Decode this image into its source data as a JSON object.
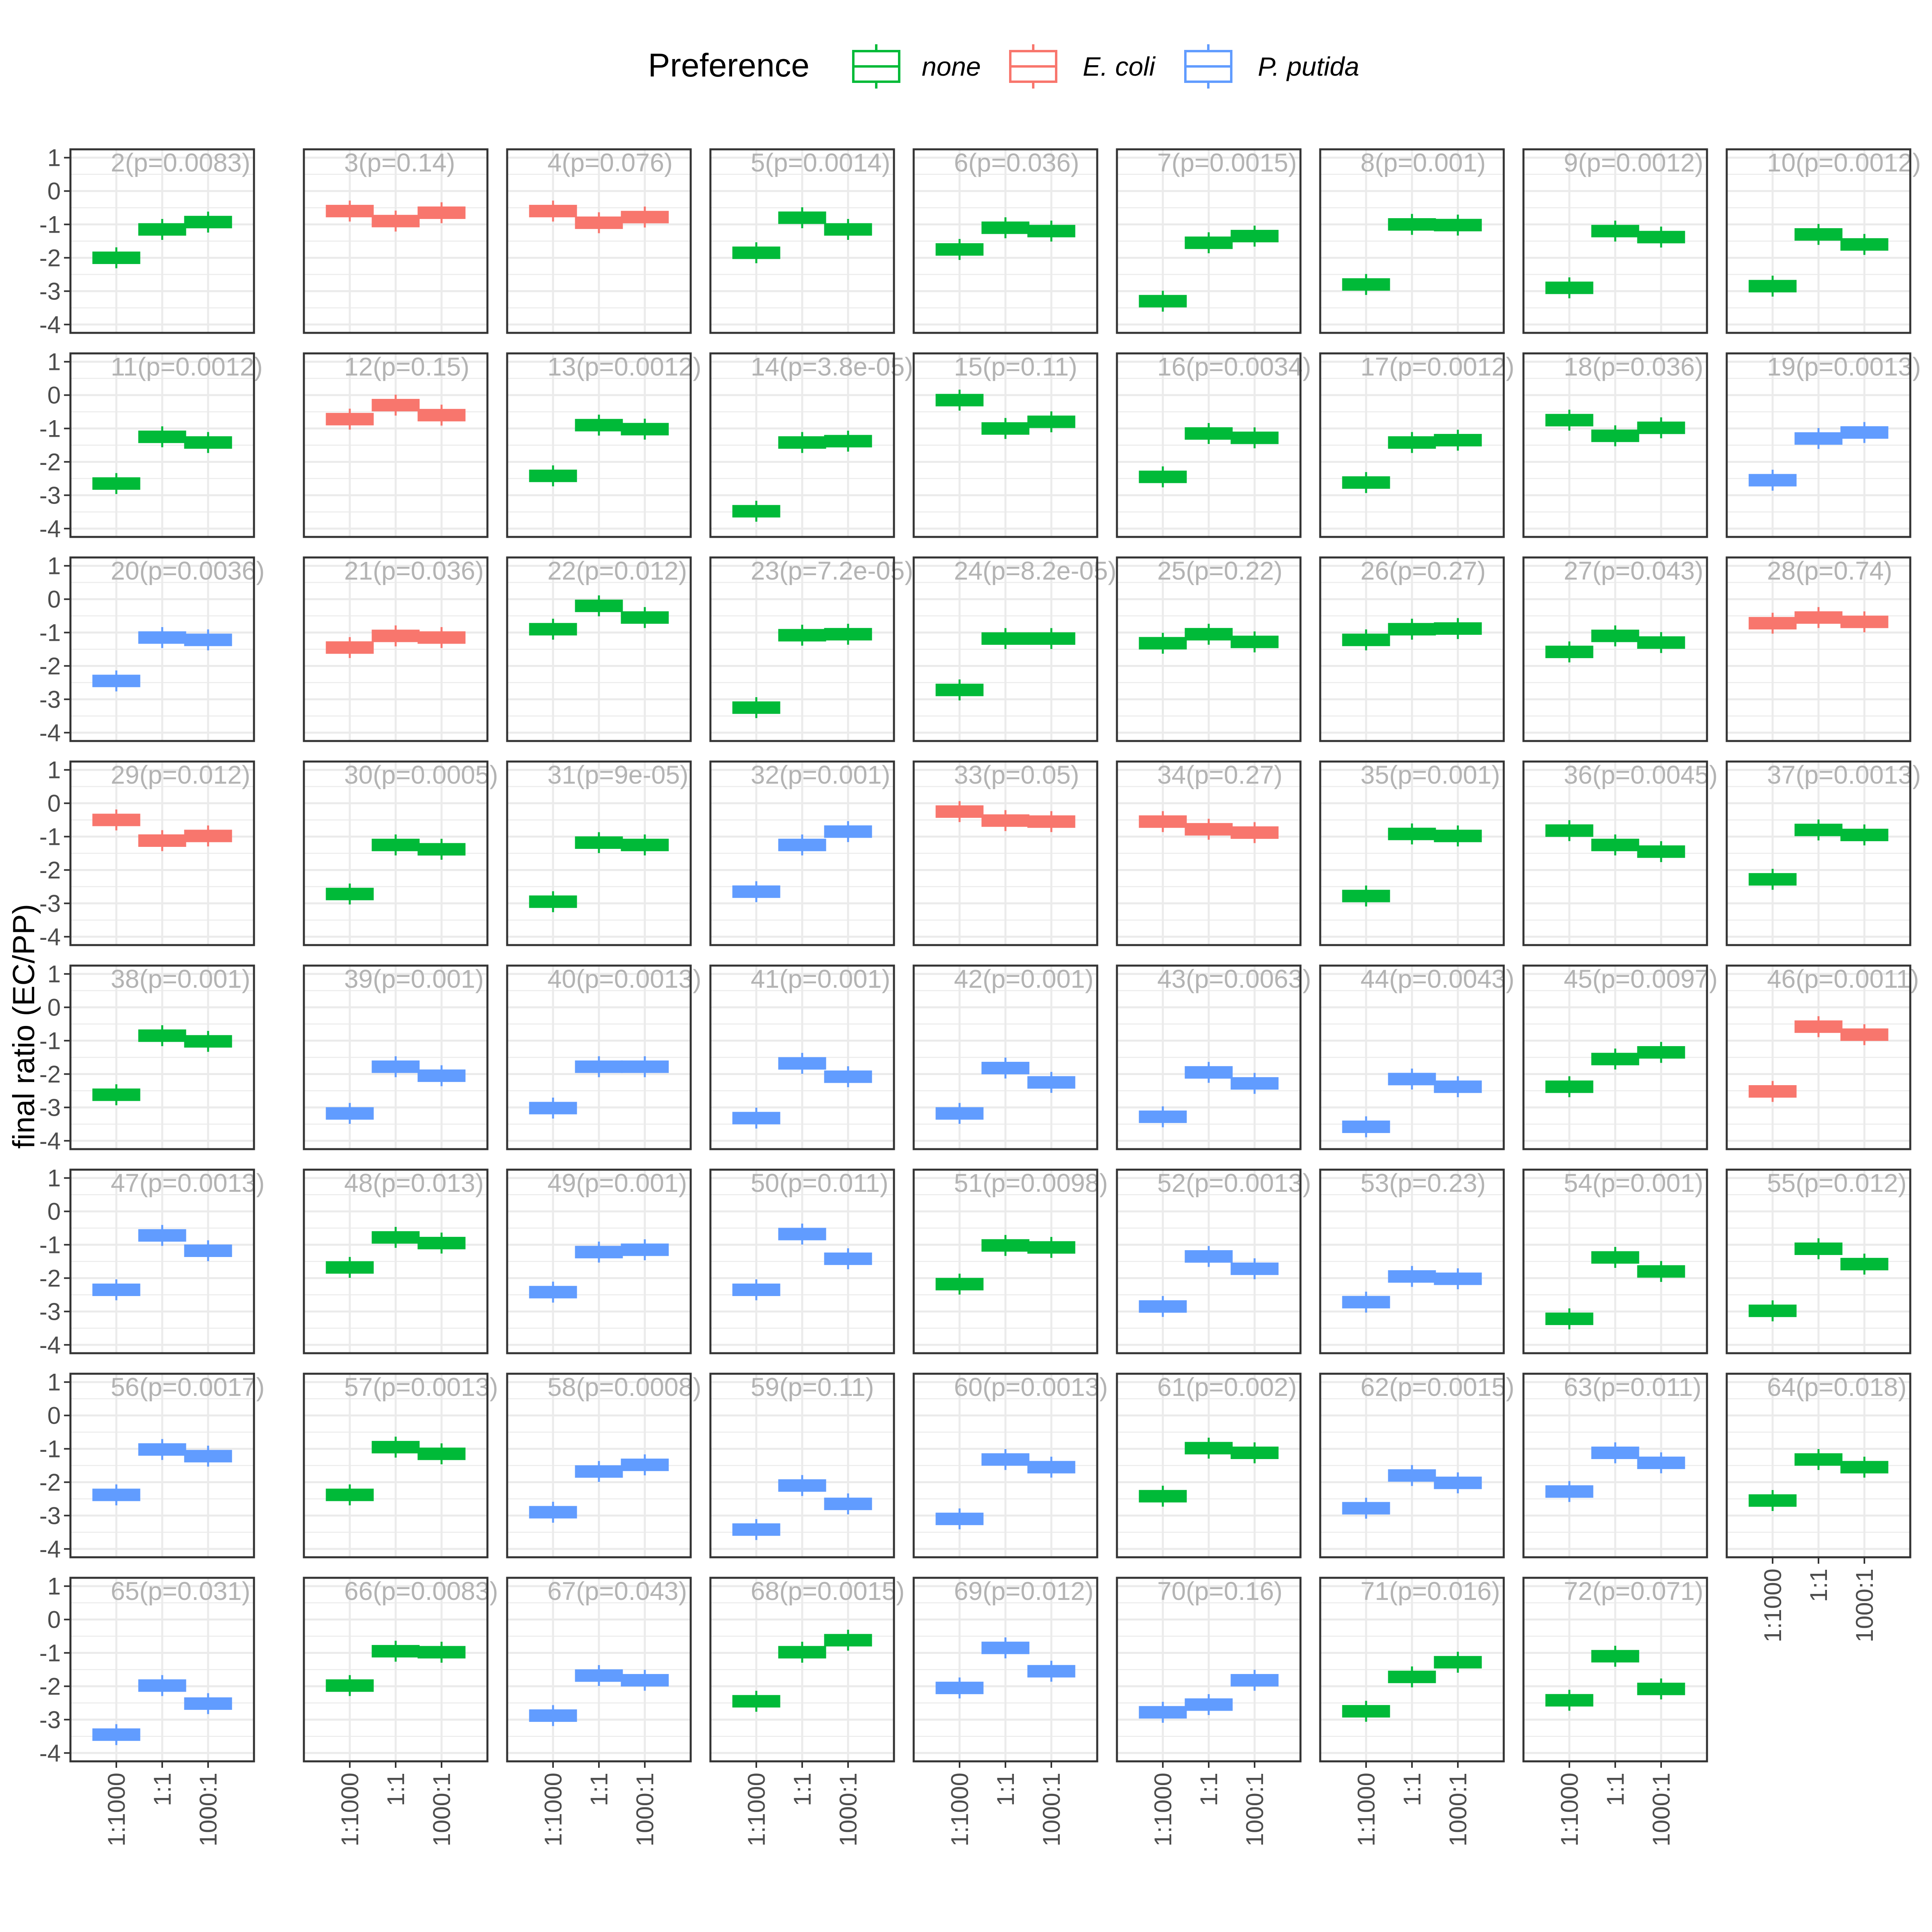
{
  "chart_data": {
    "type": "boxplot-facets",
    "ylabel": "final ratio (EC/PP)",
    "legend": {
      "title": "Preference",
      "position": "top",
      "entries": [
        {
          "key": "none",
          "label": "none",
          "color": "#00BA38"
        },
        {
          "key": "ecoli",
          "label": "E. coli",
          "color": "#F8766D"
        },
        {
          "key": "pputida",
          "label": "P. putida",
          "color": "#619CFF"
        }
      ]
    },
    "categories": [
      "1:1000",
      "1:1",
      "1000:1"
    ],
    "ylim": [
      -4.25,
      1.25
    ],
    "yticks": [
      "1",
      "0",
      "-1",
      "-2",
      "-3",
      "-4"
    ],
    "grid": true,
    "columns": 9,
    "panels": [
      {
        "title": "2(p=0.0083)",
        "pref": "none",
        "values": [
          -2.0,
          -1.15,
          -0.93
        ]
      },
      {
        "title": "3(p=0.14)",
        "pref": "ecoli",
        "values": [
          -0.6,
          -0.9,
          -0.65
        ]
      },
      {
        "title": "4(p=0.076)",
        "pref": "ecoli",
        "values": [
          -0.6,
          -0.95,
          -0.78
        ]
      },
      {
        "title": "5(p=0.0014)",
        "pref": "none",
        "values": [
          -1.85,
          -0.8,
          -1.15
        ]
      },
      {
        "title": "6(p=0.036)",
        "pref": "none",
        "values": [
          -1.75,
          -1.1,
          -1.2
        ]
      },
      {
        "title": "7(p=0.0015)",
        "pref": "none",
        "values": [
          -3.3,
          -1.55,
          -1.35
        ]
      },
      {
        "title": "8(p=0.001)",
        "pref": "none",
        "values": [
          -2.8,
          -1.0,
          -1.02
        ]
      },
      {
        "title": "9(p=0.0012)",
        "pref": "none",
        "values": [
          -2.9,
          -1.2,
          -1.38
        ]
      },
      {
        "title": "10(p=0.0012)",
        "pref": "none",
        "values": [
          -2.85,
          -1.3,
          -1.6
        ]
      },
      {
        "title": "11(p=0.0012)",
        "pref": "none",
        "values": [
          -2.65,
          -1.25,
          -1.42
        ]
      },
      {
        "title": "12(p=0.15)",
        "pref": "ecoli",
        "values": [
          -0.72,
          -0.3,
          -0.6
        ]
      },
      {
        "title": "13(p=0.0012)",
        "pref": "none",
        "values": [
          -2.42,
          -0.9,
          -1.02
        ]
      },
      {
        "title": "14(p=3.8e-05)",
        "pref": "none",
        "values": [
          -3.48,
          -1.42,
          -1.38
        ]
      },
      {
        "title": "15(p=0.11)",
        "pref": "none",
        "values": [
          -0.15,
          -1.0,
          -0.8
        ]
      },
      {
        "title": "16(p=0.0034)",
        "pref": "none",
        "values": [
          -2.45,
          -1.15,
          -1.28
        ]
      },
      {
        "title": "17(p=0.0012)",
        "pref": "none",
        "values": [
          -2.62,
          -1.42,
          -1.35
        ]
      },
      {
        "title": "18(p=0.036)",
        "pref": "none",
        "values": [
          -0.75,
          -1.22,
          -0.98
        ]
      },
      {
        "title": "19(p=0.0013)",
        "pref": "pputida",
        "values": [
          -2.55,
          -1.3,
          -1.12
        ]
      },
      {
        "title": "20(p=0.0036)",
        "pref": "pputida",
        "values": [
          -2.45,
          -1.15,
          -1.22
        ]
      },
      {
        "title": "21(p=0.036)",
        "pref": "ecoli",
        "values": [
          -1.45,
          -1.1,
          -1.15
        ]
      },
      {
        "title": "22(p=0.012)",
        "pref": "none",
        "values": [
          -0.9,
          -0.2,
          -0.55
        ]
      },
      {
        "title": "23(p=7.2e-05)",
        "pref": "none",
        "values": [
          -3.25,
          -1.08,
          -1.05
        ]
      },
      {
        "title": "24(p=8.2e-05)",
        "pref": "none",
        "values": [
          -2.72,
          -1.18,
          -1.18
        ]
      },
      {
        "title": "25(p=0.22)",
        "pref": "none",
        "values": [
          -1.32,
          -1.05,
          -1.28
        ]
      },
      {
        "title": "26(p=0.27)",
        "pref": "none",
        "values": [
          -1.22,
          -0.9,
          -0.88
        ]
      },
      {
        "title": "27(p=0.043)",
        "pref": "none",
        "values": [
          -1.58,
          -1.1,
          -1.3
        ]
      },
      {
        "title": "28(p=0.74)",
        "pref": "ecoli",
        "values": [
          -0.72,
          -0.55,
          -0.68
        ]
      },
      {
        "title": "29(p=0.012)",
        "pref": "ecoli",
        "values": [
          -0.5,
          -1.12,
          -0.98
        ]
      },
      {
        "title": "30(p=0.0005)",
        "pref": "none",
        "values": [
          -2.72,
          -1.25,
          -1.38
        ]
      },
      {
        "title": "31(p=9e-05)",
        "pref": "none",
        "values": [
          -2.95,
          -1.18,
          -1.25
        ]
      },
      {
        "title": "32(p=0.001)",
        "pref": "pputida",
        "values": [
          -2.65,
          -1.25,
          -0.85
        ]
      },
      {
        "title": "33(p=0.05)",
        "pref": "ecoli",
        "values": [
          -0.25,
          -0.52,
          -0.55
        ]
      },
      {
        "title": "34(p=0.27)",
        "pref": "ecoli",
        "values": [
          -0.55,
          -0.78,
          -0.88
        ]
      },
      {
        "title": "35(p=0.001)",
        "pref": "none",
        "values": [
          -2.78,
          -0.92,
          -0.98
        ]
      },
      {
        "title": "36(p=0.0045)",
        "pref": "none",
        "values": [
          -0.82,
          -1.25,
          -1.45
        ]
      },
      {
        "title": "37(p=0.0013)",
        "pref": "none",
        "values": [
          -2.28,
          -0.8,
          -0.95
        ]
      },
      {
        "title": "38(p=0.001)",
        "pref": "none",
        "values": [
          -2.62,
          -0.85,
          -1.02
        ]
      },
      {
        "title": "39(p=0.001)",
        "pref": "pputida",
        "values": [
          -3.18,
          -1.78,
          -2.05
        ]
      },
      {
        "title": "40(p=0.0013)",
        "pref": "pputida",
        "values": [
          -3.02,
          -1.78,
          -1.78
        ]
      },
      {
        "title": "41(p=0.001)",
        "pref": "pputida",
        "values": [
          -3.32,
          -1.68,
          -2.08
        ]
      },
      {
        "title": "42(p=0.001)",
        "pref": "pputida",
        "values": [
          -3.18,
          -1.82,
          -2.25
        ]
      },
      {
        "title": "43(p=0.0063)",
        "pref": "pputida",
        "values": [
          -3.28,
          -1.95,
          -2.28
        ]
      },
      {
        "title": "44(p=0.0043)",
        "pref": "pputida",
        "values": [
          -3.58,
          -2.15,
          -2.38
        ]
      },
      {
        "title": "45(p=0.0097)",
        "pref": "none",
        "values": [
          -2.38,
          -1.55,
          -1.35
        ]
      },
      {
        "title": "46(p=0.0011)",
        "pref": "ecoli",
        "values": [
          -2.52,
          -0.58,
          -0.82
        ]
      },
      {
        "title": "47(p=0.0013)",
        "pref": "pputida",
        "values": [
          -2.35,
          -0.72,
          -1.18
        ]
      },
      {
        "title": "48(p=0.013)",
        "pref": "none",
        "values": [
          -1.68,
          -0.78,
          -0.95
        ]
      },
      {
        "title": "49(p=0.001)",
        "pref": "pputida",
        "values": [
          -2.42,
          -1.22,
          -1.15
        ]
      },
      {
        "title": "50(p=0.011)",
        "pref": "pputida",
        "values": [
          -2.35,
          -0.68,
          -1.42
        ]
      },
      {
        "title": "51(p=0.0098)",
        "pref": "none",
        "values": [
          -2.18,
          -1.02,
          -1.08
        ]
      },
      {
        "title": "52(p=0.0013)",
        "pref": "pputida",
        "values": [
          -2.85,
          -1.35,
          -1.72
        ]
      },
      {
        "title": "53(p=0.23)",
        "pref": "pputida",
        "values": [
          -2.72,
          -1.95,
          -2.02
        ]
      },
      {
        "title": "54(p=0.001)",
        "pref": "none",
        "values": [
          -3.22,
          -1.38,
          -1.8
        ]
      },
      {
        "title": "55(p=0.012)",
        "pref": "none",
        "values": [
          -2.98,
          -1.12,
          -1.58
        ]
      },
      {
        "title": "56(p=0.0017)",
        "pref": "pputida",
        "values": [
          -2.38,
          -1.02,
          -1.22
        ]
      },
      {
        "title": "57(p=0.0013)",
        "pref": "none",
        "values": [
          -2.38,
          -0.95,
          -1.15
        ]
      },
      {
        "title": "58(p=0.0008)",
        "pref": "pputida",
        "values": [
          -2.9,
          -1.68,
          -1.48
        ]
      },
      {
        "title": "59(p=0.11)",
        "pref": "pputida",
        "values": [
          -3.42,
          -2.1,
          -2.65
        ]
      },
      {
        "title": "60(p=0.0013)",
        "pref": "pputida",
        "values": [
          -3.1,
          -1.32,
          -1.55
        ]
      },
      {
        "title": "61(p=0.002)",
        "pref": "none",
        "values": [
          -2.42,
          -0.98,
          -1.12
        ]
      },
      {
        "title": "62(p=0.0015)",
        "pref": "pputida",
        "values": [
          -2.78,
          -1.8,
          -2.02
        ]
      },
      {
        "title": "63(p=0.011)",
        "pref": "pputida",
        "values": [
          -2.28,
          -1.12,
          -1.42
        ]
      },
      {
        "title": "64(p=0.018)",
        "pref": "none",
        "values": [
          -2.55,
          -1.32,
          -1.55
        ]
      },
      {
        "title": "65(p=0.031)",
        "pref": "pputida",
        "values": [
          -3.45,
          -1.98,
          -2.52
        ]
      },
      {
        "title": "66(p=0.0083)",
        "pref": "none",
        "values": [
          -1.98,
          -0.95,
          -0.98
        ]
      },
      {
        "title": "67(p=0.043)",
        "pref": "pputida",
        "values": [
          -2.88,
          -1.68,
          -1.82
        ]
      },
      {
        "title": "68(p=0.0015)",
        "pref": "none",
        "values": [
          -2.45,
          -0.98,
          -0.62
        ]
      },
      {
        "title": "69(p=0.012)",
        "pref": "pputida",
        "values": [
          -2.05,
          -0.85,
          -1.55
        ]
      },
      {
        "title": "70(p=0.16)",
        "pref": "pputida",
        "values": [
          -2.78,
          -2.55,
          -1.82
        ]
      },
      {
        "title": "71(p=0.016)",
        "pref": "none",
        "values": [
          -2.75,
          -1.72,
          -1.28
        ]
      },
      {
        "title": "72(p=0.071)",
        "pref": "none",
        "values": [
          -2.42,
          -1.1,
          -2.08
        ]
      }
    ]
  }
}
